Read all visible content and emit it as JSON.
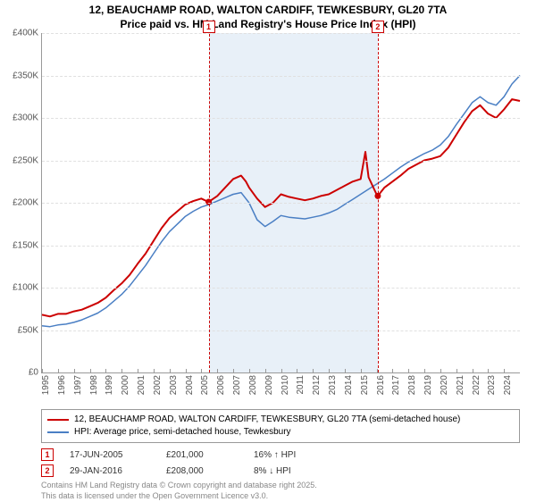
{
  "title_line1": "12, BEAUCHAMP ROAD, WALTON CARDIFF, TEWKESBURY, GL20 7TA",
  "title_line2": "Price paid vs. HM Land Registry's House Price Index (HPI)",
  "chart": {
    "type": "line",
    "background_color": "#ffffff",
    "grid_color": "#e0e0e0",
    "axis_color": "#999999",
    "x_min": 1995,
    "x_max": 2025,
    "y_min": 0,
    "y_max": 400000,
    "y_tick_step": 50000,
    "y_tick_labels": [
      "£0",
      "£50K",
      "£100K",
      "£150K",
      "£200K",
      "£250K",
      "£300K",
      "£350K",
      "£400K"
    ],
    "x_ticks": [
      1995,
      1996,
      1997,
      1998,
      1999,
      2000,
      2001,
      2002,
      2003,
      2004,
      2005,
      2006,
      2007,
      2008,
      2009,
      2010,
      2011,
      2012,
      2013,
      2014,
      2015,
      2016,
      2017,
      2018,
      2019,
      2020,
      2021,
      2022,
      2023,
      2024
    ],
    "highlight_band": {
      "from": 2005.46,
      "to": 2016.08,
      "color": "#dce8f5"
    },
    "markers": [
      {
        "label": "1",
        "year": 2005.46
      },
      {
        "label": "2",
        "year": 2016.08
      }
    ],
    "series": [
      {
        "name": "12, BEAUCHAMP ROAD, WALTON CARDIFF, TEWKESBURY, GL20 7TA (semi-detached house)",
        "color": "#cc0000",
        "line_width": 2,
        "points": [
          [
            1995,
            68000
          ],
          [
            1995.5,
            66000
          ],
          [
            1996,
            69000
          ],
          [
            1996.5,
            69000
          ],
          [
            1997,
            72000
          ],
          [
            1997.5,
            74000
          ],
          [
            1998,
            78000
          ],
          [
            1998.5,
            82000
          ],
          [
            1999,
            88000
          ],
          [
            1999.5,
            97000
          ],
          [
            2000,
            105000
          ],
          [
            2000.5,
            115000
          ],
          [
            2001,
            128000
          ],
          [
            2001.5,
            140000
          ],
          [
            2002,
            155000
          ],
          [
            2002.5,
            170000
          ],
          [
            2003,
            182000
          ],
          [
            2003.5,
            190000
          ],
          [
            2004,
            198000
          ],
          [
            2004.5,
            202000
          ],
          [
            2005,
            205000
          ],
          [
            2005.46,
            201000
          ],
          [
            2006,
            208000
          ],
          [
            2006.5,
            218000
          ],
          [
            2007,
            228000
          ],
          [
            2007.5,
            232000
          ],
          [
            2007.8,
            225000
          ],
          [
            2008,
            218000
          ],
          [
            2008.5,
            205000
          ],
          [
            2009,
            195000
          ],
          [
            2009.5,
            200000
          ],
          [
            2010,
            210000
          ],
          [
            2010.5,
            207000
          ],
          [
            2011,
            205000
          ],
          [
            2011.5,
            203000
          ],
          [
            2012,
            205000
          ],
          [
            2012.5,
            208000
          ],
          [
            2013,
            210000
          ],
          [
            2013.5,
            215000
          ],
          [
            2014,
            220000
          ],
          [
            2014.5,
            225000
          ],
          [
            2015,
            228000
          ],
          [
            2015.3,
            260000
          ],
          [
            2015.5,
            230000
          ],
          [
            2016,
            210000
          ],
          [
            2016.08,
            208000
          ],
          [
            2016.5,
            218000
          ],
          [
            2017,
            225000
          ],
          [
            2017.5,
            232000
          ],
          [
            2018,
            240000
          ],
          [
            2018.5,
            245000
          ],
          [
            2019,
            250000
          ],
          [
            2019.5,
            252000
          ],
          [
            2020,
            255000
          ],
          [
            2020.5,
            265000
          ],
          [
            2021,
            280000
          ],
          [
            2021.5,
            295000
          ],
          [
            2022,
            308000
          ],
          [
            2022.5,
            315000
          ],
          [
            2023,
            305000
          ],
          [
            2023.5,
            300000
          ],
          [
            2024,
            310000
          ],
          [
            2024.5,
            322000
          ],
          [
            2025,
            320000
          ]
        ]
      },
      {
        "name": "HPI: Average price, semi-detached house, Tewkesbury",
        "color": "#4a7fc4",
        "line_width": 1.5,
        "points": [
          [
            1995,
            55000
          ],
          [
            1995.5,
            54000
          ],
          [
            1996,
            56000
          ],
          [
            1996.5,
            57000
          ],
          [
            1997,
            59000
          ],
          [
            1997.5,
            62000
          ],
          [
            1998,
            66000
          ],
          [
            1998.5,
            70000
          ],
          [
            1999,
            76000
          ],
          [
            1999.5,
            84000
          ],
          [
            2000,
            92000
          ],
          [
            2000.5,
            102000
          ],
          [
            2001,
            114000
          ],
          [
            2001.5,
            126000
          ],
          [
            2002,
            140000
          ],
          [
            2002.5,
            154000
          ],
          [
            2003,
            166000
          ],
          [
            2003.5,
            175000
          ],
          [
            2004,
            184000
          ],
          [
            2004.5,
            190000
          ],
          [
            2005,
            195000
          ],
          [
            2005.5,
            198000
          ],
          [
            2006,
            202000
          ],
          [
            2006.5,
            206000
          ],
          [
            2007,
            210000
          ],
          [
            2007.5,
            212000
          ],
          [
            2008,
            200000
          ],
          [
            2008.5,
            180000
          ],
          [
            2009,
            172000
          ],
          [
            2009.5,
            178000
          ],
          [
            2010,
            185000
          ],
          [
            2010.5,
            183000
          ],
          [
            2011,
            182000
          ],
          [
            2011.5,
            181000
          ],
          [
            2012,
            183000
          ],
          [
            2012.5,
            185000
          ],
          [
            2013,
            188000
          ],
          [
            2013.5,
            192000
          ],
          [
            2014,
            198000
          ],
          [
            2014.5,
            204000
          ],
          [
            2015,
            210000
          ],
          [
            2015.5,
            216000
          ],
          [
            2016,
            222000
          ],
          [
            2016.5,
            228000
          ],
          [
            2017,
            235000
          ],
          [
            2017.5,
            242000
          ],
          [
            2018,
            248000
          ],
          [
            2018.5,
            253000
          ],
          [
            2019,
            258000
          ],
          [
            2019.5,
            262000
          ],
          [
            2020,
            268000
          ],
          [
            2020.5,
            278000
          ],
          [
            2021,
            292000
          ],
          [
            2021.5,
            305000
          ],
          [
            2022,
            318000
          ],
          [
            2022.5,
            325000
          ],
          [
            2023,
            318000
          ],
          [
            2023.5,
            315000
          ],
          [
            2024,
            325000
          ],
          [
            2024.5,
            340000
          ],
          [
            2025,
            350000
          ]
        ]
      }
    ],
    "sale_dots": [
      {
        "year": 2005.46,
        "value": 201000,
        "color": "#cc0000"
      },
      {
        "year": 2016.08,
        "value": 208000,
        "color": "#cc0000"
      }
    ]
  },
  "legend": [
    {
      "color": "#cc0000",
      "label": "12, BEAUCHAMP ROAD, WALTON CARDIFF, TEWKESBURY, GL20 7TA (semi-detached house)"
    },
    {
      "color": "#4a7fc4",
      "label": "HPI: Average price, semi-detached house, Tewkesbury"
    }
  ],
  "events": [
    {
      "badge": "1",
      "date": "17-JUN-2005",
      "price": "£201,000",
      "delta": "16% ↑ HPI"
    },
    {
      "badge": "2",
      "date": "29-JAN-2016",
      "price": "£208,000",
      "delta": "8% ↓ HPI"
    }
  ],
  "footer_line1": "Contains HM Land Registry data © Crown copyright and database right 2025.",
  "footer_line2": "This data is licensed under the Open Government Licence v3.0."
}
